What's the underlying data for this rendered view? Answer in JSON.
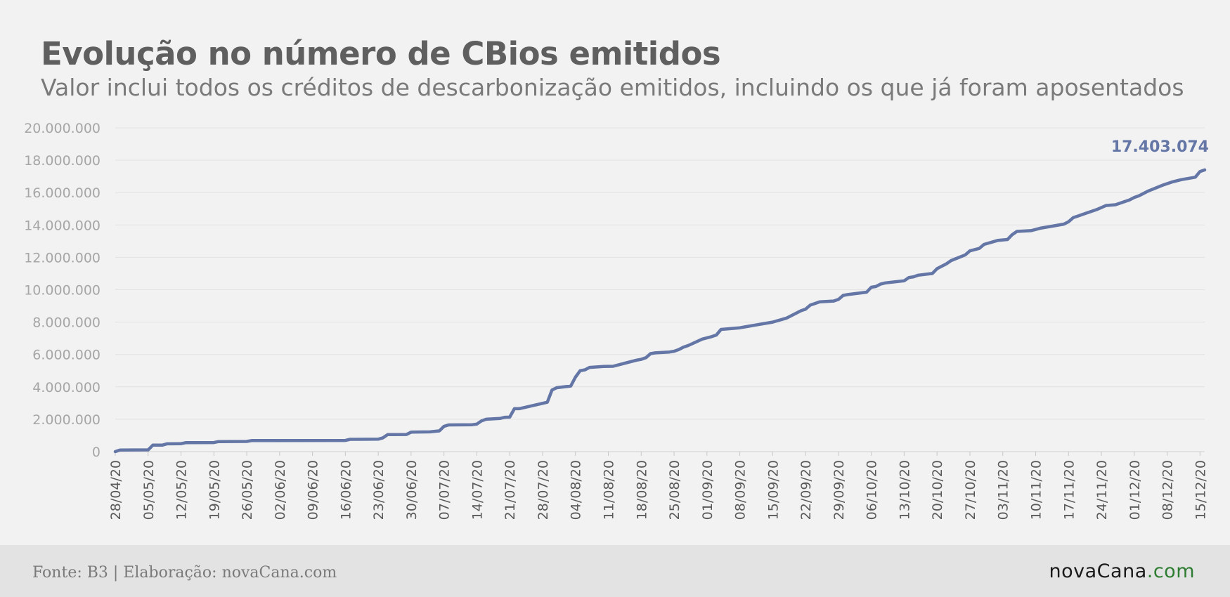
{
  "chart_data": {
    "type": "line",
    "title": "Evolução no número de CBios emitidos",
    "subtitle": "Valor inclui todos os créditos de descarbonização emitidos, incluindo os que já foram aposentados",
    "xlabel": "",
    "ylabel": "",
    "ylim": [
      0,
      20000000
    ],
    "yticks": [
      "0",
      "2.000.000",
      "4.000.000",
      "6.000.000",
      "8.000.000",
      "10.000.000",
      "12.000.000",
      "14.000.000",
      "16.000.000",
      "18.000.000",
      "20.000.000"
    ],
    "xticks": [
      "28/04/20",
      "05/05/20",
      "12/05/20",
      "19/05/20",
      "26/05/20",
      "02/06/20",
      "09/06/20",
      "16/06/20",
      "23/06/20",
      "30/06/20",
      "07/07/20",
      "14/07/20",
      "21/07/20",
      "28/07/20",
      "04/08/20",
      "11/08/20",
      "18/08/20",
      "25/08/20",
      "01/09/20",
      "08/09/20",
      "15/09/20",
      "22/09/20",
      "29/09/20",
      "06/10/20",
      "13/10/20",
      "20/10/20",
      "27/10/20",
      "03/11/20",
      "10/11/20",
      "17/11/20",
      "24/11/20",
      "01/12/20",
      "08/12/20",
      "15/12/20"
    ],
    "grid": true,
    "line_color": "#6476a6",
    "end_label": "17.403.074",
    "series": [
      {
        "points": [
          [
            "28/04/20",
            0
          ],
          [
            "29/04/20",
            100000
          ],
          [
            "05/05/20",
            110000
          ],
          [
            "06/05/20",
            400000
          ],
          [
            "08/05/20",
            400000
          ],
          [
            "09/05/20",
            480000
          ],
          [
            "12/05/20",
            490000
          ],
          [
            "13/05/20",
            550000
          ],
          [
            "19/05/20",
            560000
          ],
          [
            "20/05/20",
            620000
          ],
          [
            "26/05/20",
            630000
          ],
          [
            "27/05/20",
            680000
          ],
          [
            "16/06/20",
            690000
          ],
          [
            "17/06/20",
            760000
          ],
          [
            "23/06/20",
            770000
          ],
          [
            "24/06/20",
            850000
          ],
          [
            "25/06/20",
            1050000
          ],
          [
            "29/06/20",
            1060000
          ],
          [
            "30/06/20",
            1200000
          ],
          [
            "04/07/20",
            1220000
          ],
          [
            "06/07/20",
            1280000
          ],
          [
            "07/07/20",
            1560000
          ],
          [
            "08/07/20",
            1650000
          ],
          [
            "13/07/20",
            1660000
          ],
          [
            "14/07/20",
            1700000
          ],
          [
            "15/07/20",
            1900000
          ],
          [
            "16/07/20",
            2000000
          ],
          [
            "19/07/20",
            2050000
          ],
          [
            "20/07/20",
            2120000
          ],
          [
            "21/07/20",
            2130000
          ],
          [
            "22/07/20",
            2650000
          ],
          [
            "23/07/20",
            2650000
          ],
          [
            "29/07/20",
            3050000
          ],
          [
            "30/07/20",
            3800000
          ],
          [
            "31/07/20",
            3950000
          ],
          [
            "03/08/20",
            4050000
          ],
          [
            "04/08/20",
            4600000
          ],
          [
            "05/08/20",
            5000000
          ],
          [
            "06/08/20",
            5050000
          ],
          [
            "07/08/20",
            5200000
          ],
          [
            "10/08/20",
            5260000
          ],
          [
            "12/08/20",
            5270000
          ],
          [
            "17/08/20",
            5650000
          ],
          [
            "18/08/20",
            5700000
          ],
          [
            "19/08/20",
            5800000
          ],
          [
            "20/08/20",
            6050000
          ],
          [
            "21/08/20",
            6100000
          ],
          [
            "24/08/20",
            6150000
          ],
          [
            "25/08/20",
            6200000
          ],
          [
            "26/08/20",
            6300000
          ],
          [
            "27/08/20",
            6450000
          ],
          [
            "28/08/20",
            6550000
          ],
          [
            "31/08/20",
            6950000
          ],
          [
            "02/09/20",
            7100000
          ],
          [
            "03/09/20",
            7200000
          ],
          [
            "04/09/20",
            7550000
          ],
          [
            "08/09/20",
            7650000
          ],
          [
            "09/09/20",
            7700000
          ],
          [
            "10/09/20",
            7750000
          ],
          [
            "11/09/20",
            7800000
          ],
          [
            "15/09/20",
            8000000
          ],
          [
            "18/09/20",
            8250000
          ],
          [
            "21/09/20",
            8700000
          ],
          [
            "22/09/20",
            8800000
          ],
          [
            "23/09/20",
            9050000
          ],
          [
            "24/09/20",
            9150000
          ],
          [
            "25/09/20",
            9250000
          ],
          [
            "28/09/20",
            9300000
          ],
          [
            "29/09/20",
            9400000
          ],
          [
            "30/09/20",
            9650000
          ],
          [
            "01/10/20",
            9700000
          ],
          [
            "05/10/20",
            9850000
          ],
          [
            "06/10/20",
            10150000
          ],
          [
            "07/10/20",
            10200000
          ],
          [
            "08/10/20",
            10350000
          ],
          [
            "09/10/20",
            10420000
          ],
          [
            "13/10/20",
            10550000
          ],
          [
            "14/10/20",
            10750000
          ],
          [
            "15/10/20",
            10800000
          ],
          [
            "16/10/20",
            10900000
          ],
          [
            "19/10/20",
            11000000
          ],
          [
            "20/10/20",
            11300000
          ],
          [
            "22/10/20",
            11600000
          ],
          [
            "23/10/20",
            11800000
          ],
          [
            "26/10/20",
            12150000
          ],
          [
            "27/10/20",
            12400000
          ],
          [
            "29/10/20",
            12550000
          ],
          [
            "30/10/20",
            12800000
          ],
          [
            "02/11/20",
            13050000
          ],
          [
            "04/11/20",
            13100000
          ],
          [
            "05/11/20",
            13400000
          ],
          [
            "06/11/20",
            13600000
          ],
          [
            "09/11/20",
            13650000
          ],
          [
            "11/11/20",
            13800000
          ],
          [
            "13/11/20",
            13900000
          ],
          [
            "16/11/20",
            14050000
          ],
          [
            "17/11/20",
            14200000
          ],
          [
            "18/11/20",
            14450000
          ],
          [
            "19/11/20",
            14550000
          ],
          [
            "20/11/20",
            14650000
          ],
          [
            "23/11/20",
            14950000
          ],
          [
            "25/11/20",
            15200000
          ],
          [
            "27/11/20",
            15250000
          ],
          [
            "30/11/20",
            15550000
          ],
          [
            "01/12/20",
            15700000
          ],
          [
            "02/12/20",
            15800000
          ],
          [
            "04/12/20",
            16100000
          ],
          [
            "07/12/20",
            16450000
          ],
          [
            "09/12/20",
            16650000
          ],
          [
            "11/12/20",
            16800000
          ],
          [
            "14/12/20",
            16950000
          ],
          [
            "15/12/20",
            17300000
          ],
          [
            "16/12/20",
            17403074
          ]
        ]
      }
    ]
  },
  "footer": {
    "source": "Fonte: B3 | Elaboração: novaCana.com",
    "logo_main": "novaCana",
    "logo_tld": ".com"
  }
}
